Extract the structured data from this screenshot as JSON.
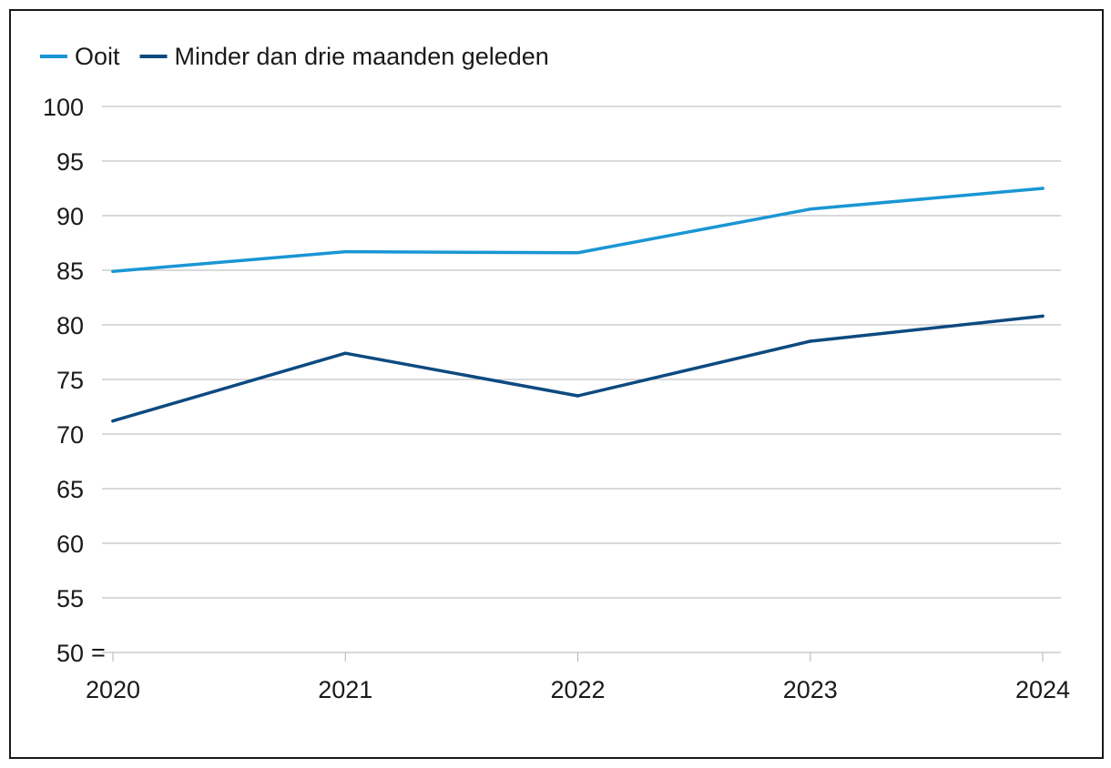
{
  "chart_data": {
    "type": "line",
    "x": [
      "2020",
      "2021",
      "2022",
      "2023",
      "2024"
    ],
    "series": [
      {
        "name": "Ooit",
        "color": "#1a96d4",
        "values": [
          84.9,
          86.7,
          86.6,
          90.6,
          92.5
        ]
      },
      {
        "name": "Minder dan drie maanden geleden",
        "color": "#0d4a80",
        "values": [
          71.2,
          77.4,
          73.5,
          78.5,
          80.8
        ]
      }
    ],
    "yticks": [
      "50",
      "55",
      "60",
      "65",
      "70",
      "75",
      "80",
      "85",
      "90",
      "95",
      "100"
    ],
    "ylim": [
      50,
      100
    ],
    "axis_break_symbol": "=",
    "grid": true,
    "legend_position": "top-left",
    "gridline_color": "#b3b3b3",
    "text_color": "#1a1a1a"
  }
}
